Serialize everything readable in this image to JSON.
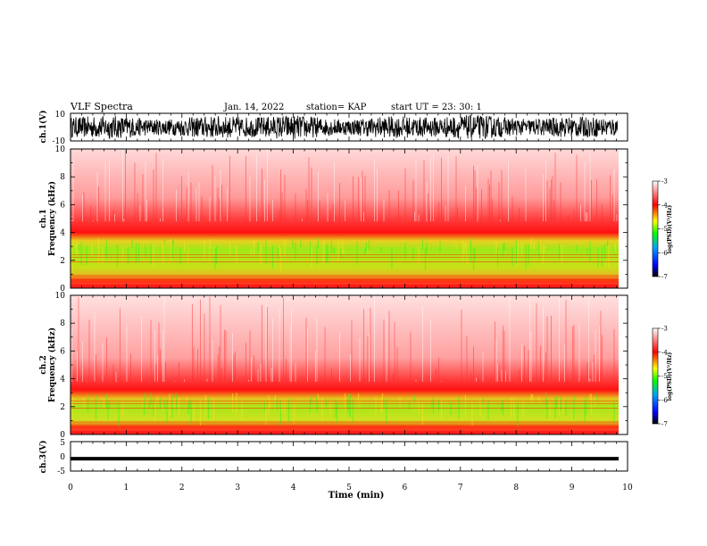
{
  "header": {
    "title": "VLF Spectra",
    "date": "Jan. 14, 2022",
    "station": "station= KAP",
    "start": "start  UT  =   23: 30: 1"
  },
  "chart_data": [
    {
      "type": "line",
      "name": "ch1-waveform",
      "ylabel": "ch.1(V)",
      "ylim": [
        -10,
        10
      ],
      "yticks": [
        "10",
        "-10"
      ],
      "xlim": [
        0,
        10
      ],
      "data_extent_min": 9.82,
      "signal_amplitude_range": [
        -9,
        9
      ]
    },
    {
      "type": "heatmap",
      "name": "ch1-spectrogram",
      "ylabel": "ch.1\nFrequency (kHz)",
      "ylim": [
        0,
        10
      ],
      "yticks": [
        "0",
        "2",
        "4",
        "6",
        "8",
        "10"
      ],
      "xlim": [
        0,
        10
      ],
      "bands_khz": {
        "dense_red_top": 4.8,
        "green_top": 3.6,
        "green_bottom": 1.0
      },
      "colorbar": {
        "label": "log(PSD)(V²/Hz)",
        "range": [
          -7,
          -3
        ],
        "ticks": [
          "-3",
          "-4",
          "-5",
          "-6",
          "-7"
        ]
      }
    },
    {
      "type": "heatmap",
      "name": "ch2-spectrogram",
      "ylabel": "ch.2\nFrequency (kHz)",
      "ylim": [
        0,
        10
      ],
      "yticks": [
        "0",
        "2",
        "4",
        "6",
        "8",
        "10"
      ],
      "xlim": [
        0,
        10
      ],
      "bands_khz": {
        "dense_red_top": 3.8,
        "green_top": 3.0,
        "green_bottom": 0.5
      },
      "colorbar": {
        "label": "log(PSD)(V²/Hz)",
        "range": [
          -7,
          -3
        ],
        "ticks": [
          "-3",
          "-4",
          "-5",
          "-6",
          "-7"
        ]
      }
    },
    {
      "type": "line",
      "name": "ch3-waveform",
      "ylabel": "ch.3(V)",
      "ylim": [
        -5,
        5
      ],
      "yticks": [
        "5",
        "0",
        "-5"
      ],
      "xlim": [
        0,
        10
      ],
      "signal_band": [
        -1.2,
        -0.2
      ]
    }
  ],
  "xaxis": {
    "label": "Time (min)",
    "ticks": [
      "0",
      "1",
      "2",
      "3",
      "4",
      "5",
      "6",
      "7",
      "8",
      "9",
      "10"
    ]
  },
  "colors": {
    "spectrum": [
      "#000000",
      "#0000ff",
      "#00a0ff",
      "#00ff00",
      "#ffff00",
      "#ff0000",
      "#ffffff"
    ]
  }
}
